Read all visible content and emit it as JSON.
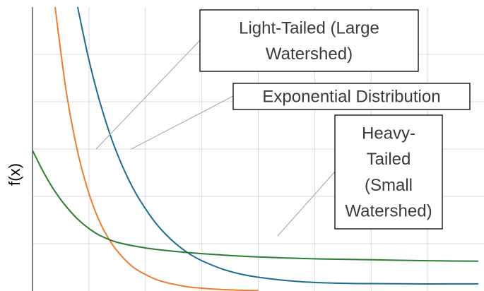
{
  "chart_data": {
    "type": "line",
    "title": "",
    "xlabel": "",
    "ylabel": "f(x)",
    "xlim": [
      0,
      8
    ],
    "ylim": [
      0,
      6
    ],
    "grid": true,
    "series": [
      {
        "key": "light",
        "color": "#ed7d31",
        "x": [
          0.4,
          0.6,
          0.8,
          1.0,
          1.2,
          1.4,
          1.6,
          1.8,
          2.0,
          2.2,
          2.4,
          2.6,
          2.8,
          3.0,
          3.2,
          3.4,
          3.6,
          3.8,
          4.0
        ],
        "y": [
          6.0,
          4.2,
          2.94,
          2.06,
          1.44,
          1.01,
          0.71,
          0.49,
          0.35,
          0.24,
          0.17,
          0.12,
          0.08,
          0.06,
          0.04,
          0.03,
          0.02,
          0.01,
          0.01
        ]
      },
      {
        "key": "exponential",
        "color": "#1f6b8f",
        "x": [
          0.8,
          1.0,
          1.2,
          1.4,
          1.6,
          1.8,
          2.0,
          2.2,
          2.4,
          2.6,
          2.8,
          3.0,
          3.4,
          3.8,
          4.2,
          4.6,
          5.0,
          5.6,
          6.2,
          6.8,
          7.4,
          7.9
        ],
        "y": [
          6.0,
          4.88,
          3.97,
          3.22,
          2.62,
          2.13,
          1.74,
          1.41,
          1.15,
          0.94,
          0.77,
          0.64,
          0.45,
          0.33,
          0.26,
          0.21,
          0.18,
          0.16,
          0.155,
          0.15,
          0.15,
          0.15
        ]
      },
      {
        "key": "heavy",
        "color": "#2e7d32",
        "x": [
          0.0,
          0.2,
          0.4,
          0.6,
          0.8,
          1.0,
          1.2,
          1.5,
          2.0,
          2.5,
          3.0,
          3.5,
          4.0,
          5.0,
          6.0,
          7.0,
          7.9
        ],
        "y": [
          2.97,
          2.5,
          2.1,
          1.78,
          1.52,
          1.32,
          1.17,
          1.03,
          0.91,
          0.84,
          0.79,
          0.75,
          0.72,
          0.68,
          0.66,
          0.64,
          0.63
        ]
      }
    ],
    "annotations": [
      {
        "key": "light",
        "text_lines": [
          "Light-Tailed (Large",
          "Watershed)"
        ]
      },
      {
        "key": "exponential",
        "text_lines": [
          "Exponential Distribution"
        ]
      },
      {
        "key": "heavy",
        "text_lines": [
          "Heavy-",
          "Tailed",
          "(Small",
          "Watershed)"
        ]
      }
    ]
  }
}
